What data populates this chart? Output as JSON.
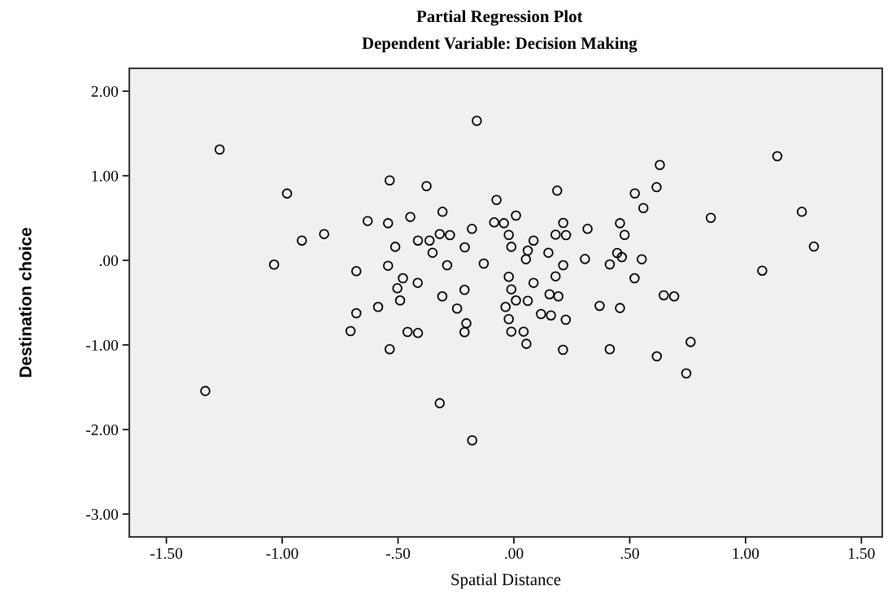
{
  "chart_data": {
    "type": "scatter",
    "title": "Partial Regression Plot",
    "subtitle": "Dependent Variable: Decision Making",
    "xlabel": "Spatial Distance",
    "ylabel": "Destination choice",
    "xlim": [
      -1.66,
      1.59
    ],
    "ylim": [
      -3.27,
      2.27
    ],
    "xticks": [
      {
        "value": -1.5,
        "label": "-1.50"
      },
      {
        "value": -1.0,
        "label": "-1.00"
      },
      {
        "value": -0.5,
        "label": "-.50"
      },
      {
        "value": 0,
        "label": ".00"
      },
      {
        "value": 0.5,
        "label": ".50"
      },
      {
        "value": 1.0,
        "label": "1.00"
      },
      {
        "value": 1.5,
        "label": "1.50"
      }
    ],
    "yticks": [
      {
        "value": -3,
        "label": "-3.00"
      },
      {
        "value": -2,
        "label": "-2.00"
      },
      {
        "value": -1,
        "label": "-1.00"
      },
      {
        "value": 0,
        "label": ".00"
      },
      {
        "value": 1,
        "label": "1.00"
      },
      {
        "value": 2,
        "label": "2.00"
      }
    ],
    "grid": false,
    "marker": "circle",
    "series": [
      {
        "color": "#000000",
        "x": [
          -1.27,
          -0.16,
          -0.536,
          -0.377,
          -0.979,
          -0.075,
          -0.308,
          -0.447,
          -0.631,
          -0.543,
          -0.085,
          -0.043,
          -0.181,
          -0.32,
          -0.276,
          -0.414,
          -0.364,
          -0.819,
          -0.915,
          -0.512,
          -0.212,
          -0.351,
          -1.035,
          -0.68,
          -0.543,
          -0.288,
          -0.13,
          -0.479,
          -0.415,
          -0.503,
          -0.213,
          -0.309,
          -0.491,
          -0.245,
          -0.586,
          -0.68,
          0.009,
          -0.022,
          0.085,
          -0.011,
          0.06,
          0.052,
          0.149,
          0.187,
          0.213,
          0.18,
          0.225,
          0.318,
          0.213,
          0.307,
          0.458,
          0.478,
          0.63,
          0.616,
          0.522,
          0.559,
          0.446,
          0.466,
          0.414,
          0.552,
          0.521,
          0.85,
          1.137,
          1.243,
          1.295,
          1.072,
          0.647,
          0.692,
          -0.022,
          -0.011,
          0.085,
          0.18,
          0.154,
          0.192,
          0.06,
          0.009,
          0.37,
          0.458,
          -0.036,
          -0.022,
          0.117,
          0.16,
          0.224,
          -0.011,
          0.042,
          0.054,
          0.212,
          0.414,
          0.763,
          0.617,
          0.744,
          -0.205,
          -0.213,
          -0.705,
          -0.459,
          -0.414,
          -0.536,
          -1.332,
          -0.32,
          -0.18
        ],
        "values": [
          1.31,
          1.65,
          0.945,
          0.878,
          0.79,
          0.714,
          0.574,
          0.513,
          0.465,
          0.439,
          0.449,
          0.439,
          0.372,
          0.311,
          0.298,
          0.234,
          0.234,
          0.311,
          0.234,
          0.16,
          0.154,
          0.09,
          -0.051,
          -0.128,
          -0.064,
          -0.058,
          -0.038,
          -0.212,
          -0.266,
          -0.33,
          -0.349,
          -0.426,
          -0.474,
          -0.57,
          -0.551,
          -0.625,
          0.529,
          0.301,
          0.234,
          0.16,
          0.115,
          0.013,
          0.09,
          0.824,
          0.442,
          0.304,
          0.298,
          0.372,
          -0.058,
          0.016,
          0.439,
          0.301,
          1.128,
          0.865,
          0.791,
          0.618,
          0.087,
          0.038,
          -0.048,
          0.013,
          -0.212,
          0.503,
          1.231,
          0.574,
          0.163,
          -0.122,
          -0.413,
          -0.426,
          -0.195,
          -0.343,
          -0.266,
          -0.189,
          -0.401,
          -0.426,
          -0.478,
          -0.474,
          -0.538,
          -0.564,
          -0.551,
          -0.695,
          -0.635,
          -0.651,
          -0.702,
          -0.843,
          -0.843,
          -0.987,
          -1.058,
          -1.051,
          -0.965,
          -1.135,
          -1.337,
          -0.744,
          -0.849,
          -0.837,
          -0.846,
          -0.859,
          -1.051,
          -1.545,
          -1.689,
          -2.128
        ]
      }
    ]
  }
}
